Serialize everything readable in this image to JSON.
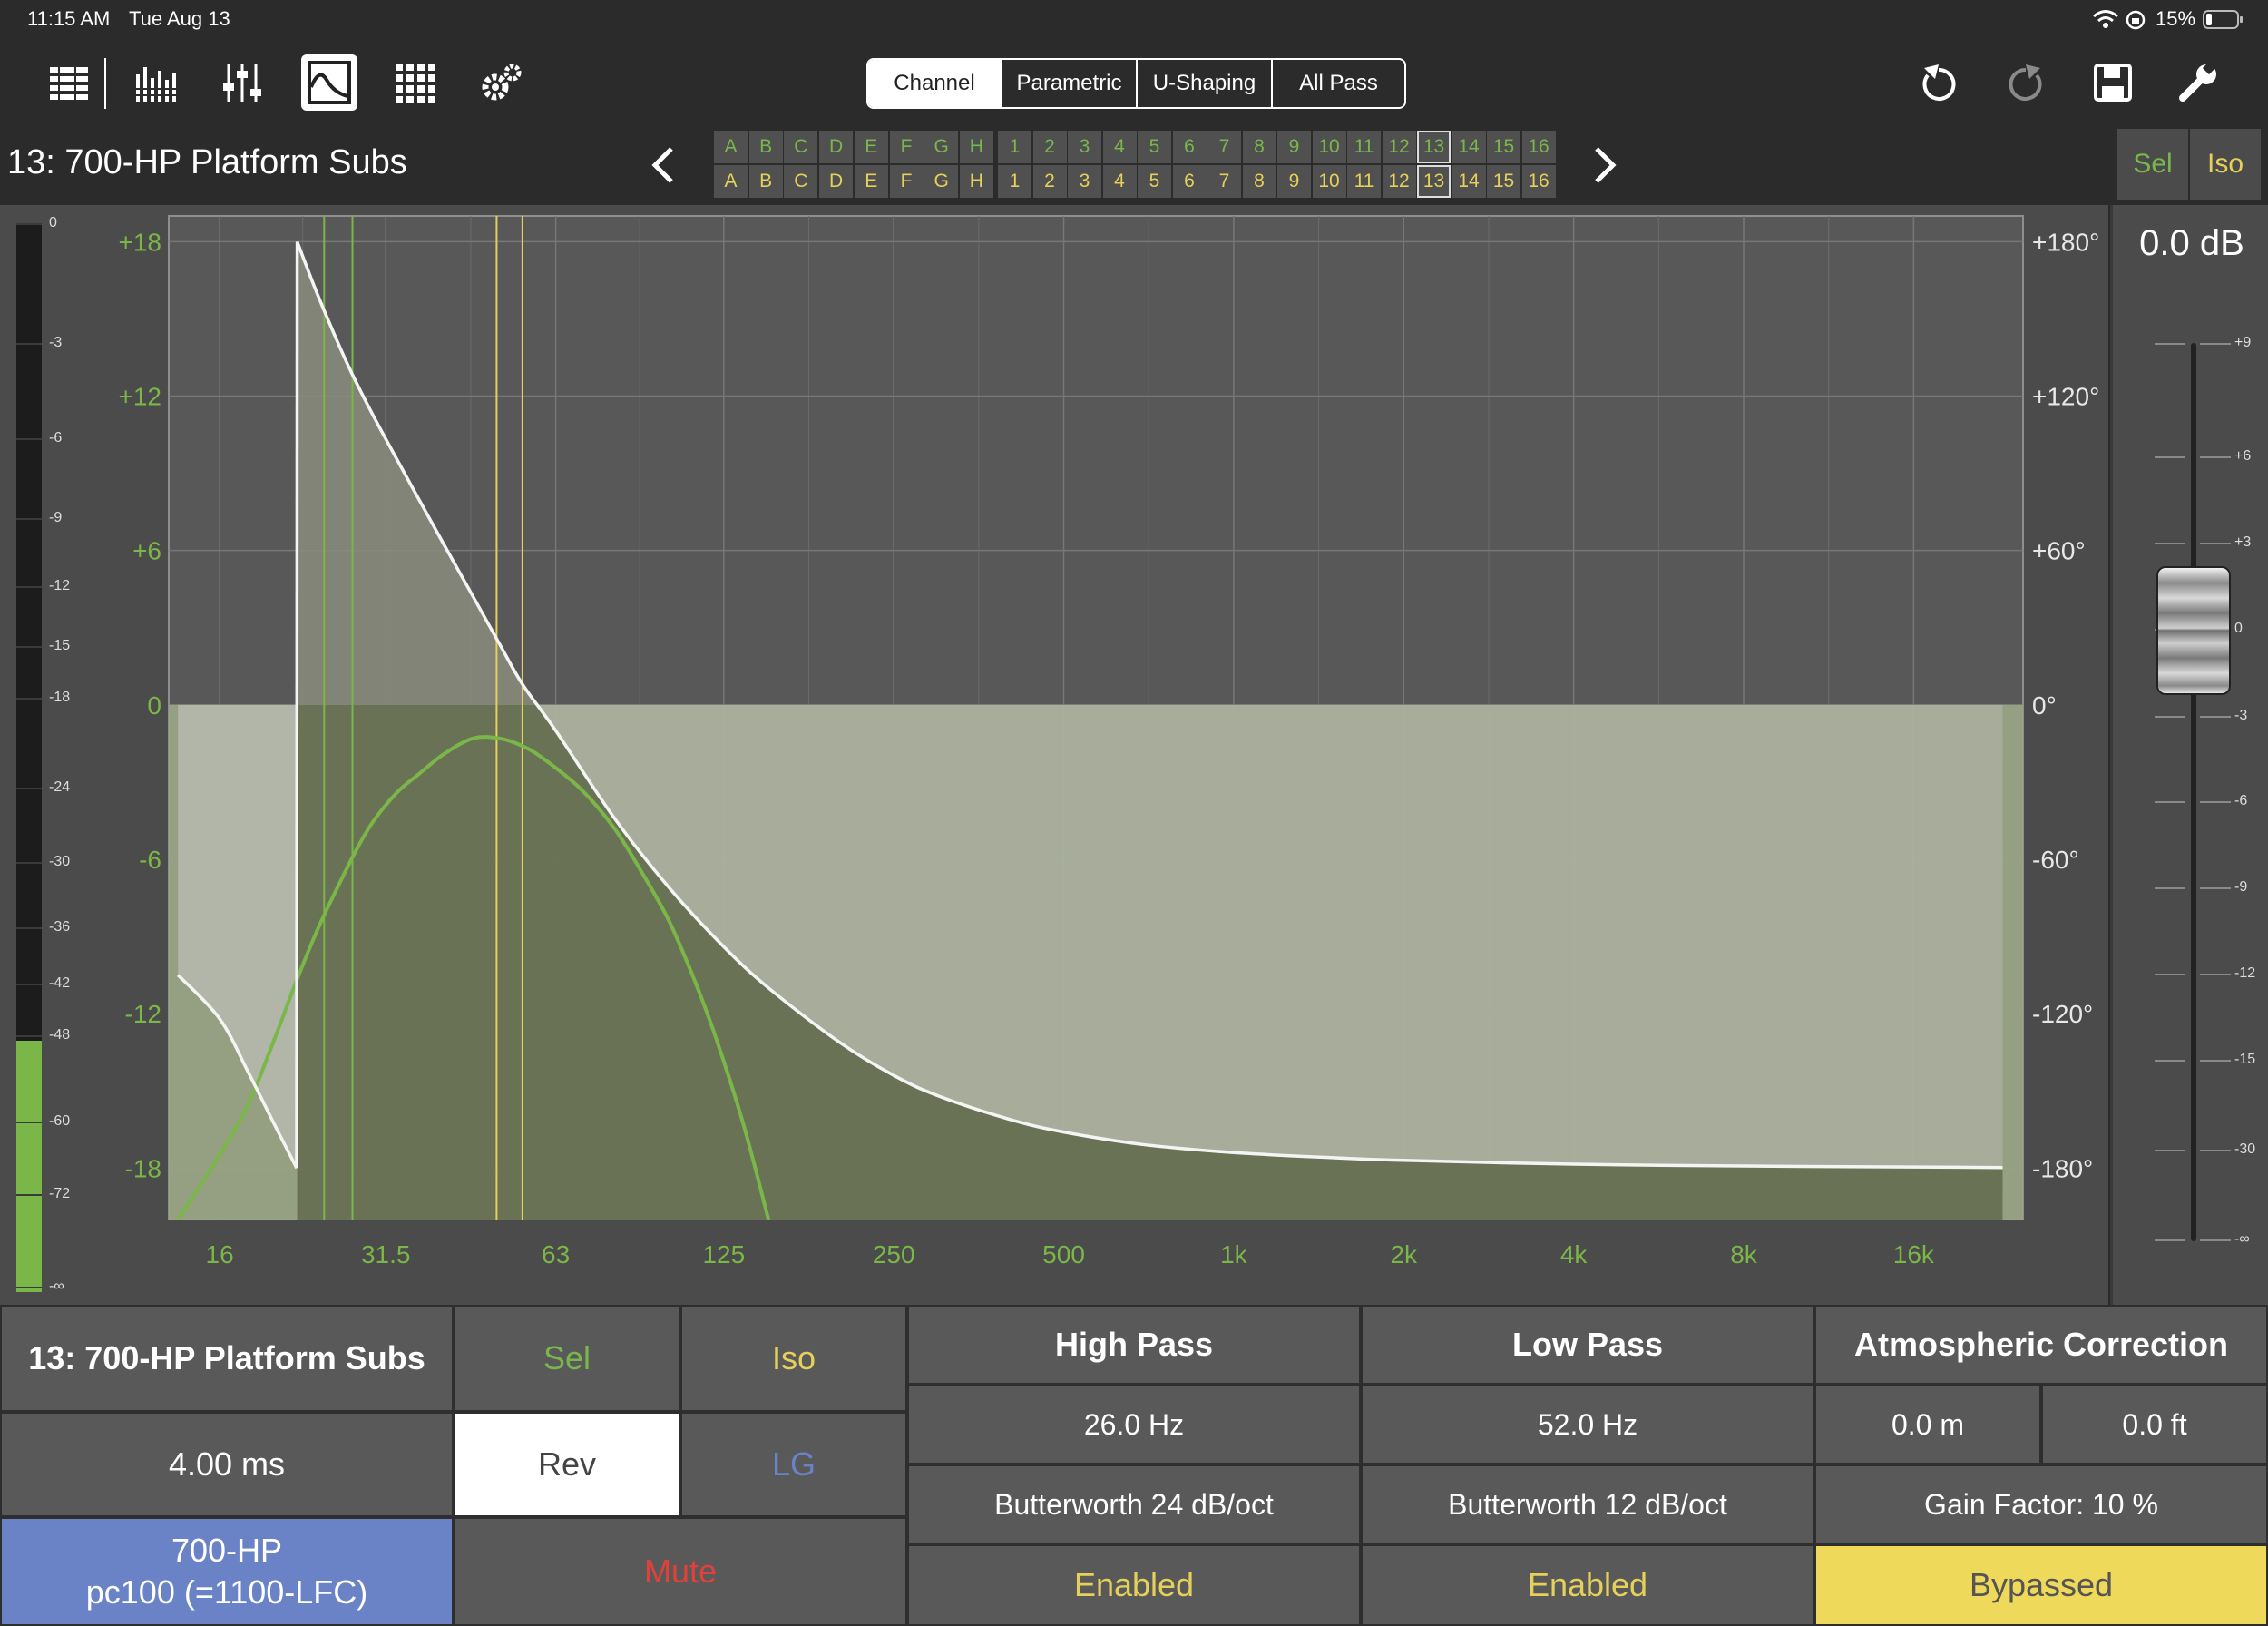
{
  "status": {
    "time": "11:15 AM",
    "date": "Tue Aug 13",
    "battery": "15%"
  },
  "toolbar": {
    "left_icons": [
      "list-view-icon",
      "meters-icon",
      "faders-icon",
      "eq-curve-icon",
      "matrix-grid-icon",
      "settings-gear-icon"
    ],
    "tabs": [
      {
        "label": "Channel",
        "active": true
      },
      {
        "label": "Parametric",
        "active": false
      },
      {
        "label": "U-Shaping",
        "active": false
      },
      {
        "label": "All Pass",
        "active": false
      }
    ],
    "right_icons": [
      "undo-icon",
      "redo-icon",
      "save-icon",
      "wrench-icon"
    ]
  },
  "header": {
    "channel_name": "13: 700-HP Platform Subs",
    "letters": [
      "A",
      "B",
      "C",
      "D",
      "E",
      "F",
      "G",
      "H"
    ],
    "numbers": [
      "1",
      "2",
      "3",
      "4",
      "5",
      "6",
      "7",
      "8",
      "9",
      "10",
      "11",
      "12",
      "13",
      "14",
      "15",
      "16"
    ],
    "selected_number": "13",
    "sel_label": "Sel",
    "iso_label": "Iso"
  },
  "meter": {
    "ticks": [
      "0",
      "-3",
      "-6",
      "-9",
      "-12",
      "-15",
      "-18",
      "-24",
      "-30",
      "-36",
      "-42",
      "-48",
      "-60",
      "-72",
      "-∞"
    ],
    "level_fraction": 0.235
  },
  "chart_data": {
    "type": "line",
    "x_scale": "log",
    "x_ticks": [
      "16",
      "31.5",
      "63",
      "125",
      "250",
      "500",
      "1k",
      "2k",
      "4k",
      "8k",
      "16k"
    ],
    "y_left_ticks": [
      "+18",
      "+12",
      "+6",
      "0",
      "-6",
      "-12",
      "-18"
    ],
    "y_right_ticks": [
      "+180°",
      "+120°",
      "+60°",
      "0°",
      "-60°",
      "-120°",
      "-180°"
    ],
    "ylim": [
      -20,
      19
    ],
    "xlim": [
      13,
      25000
    ],
    "markers": {
      "green_lines_hz": [
        24.5,
        27.5
      ],
      "yellow_lines_hz": [
        49.5,
        55
      ]
    },
    "series": [
      {
        "role": "magnitude",
        "color": "#7ab648",
        "x": [
          13.5,
          16,
          18,
          20,
          22,
          24,
          26,
          28,
          30,
          33,
          36,
          40,
          45,
          50,
          55,
          60,
          70,
          80,
          90,
          100,
          110,
          120,
          135,
          150
        ],
        "y": [
          -20,
          -17.5,
          -15.5,
          -13.0,
          -10.6,
          -8.6,
          -7.0,
          -5.6,
          -4.5,
          -3.4,
          -2.7,
          -1.9,
          -1.3,
          -1.3,
          -1.6,
          -2.1,
          -3.3,
          -4.8,
          -6.6,
          -8.4,
          -10.5,
          -12.7,
          -16.2,
          -20
        ]
      },
      {
        "role": "phase",
        "color": "#f4f4f4",
        "x": [
          13.5,
          16,
          18,
          20,
          21.9,
          21.95,
          24,
          27,
          30,
          35,
          40,
          45,
          50,
          55,
          63,
          80,
          100,
          125,
          150,
          200,
          250,
          300,
          400,
          500,
          700,
          1000,
          1500,
          2000,
          4000,
          8000,
          16000,
          23000
        ],
        "x_break": 21.9,
        "y": [
          -105,
          -122,
          -143,
          -163,
          -180,
          180,
          158,
          132,
          112,
          85,
          62,
          42,
          24,
          8,
          -10,
          -44,
          -71,
          -94,
          -110,
          -131,
          -144,
          -152,
          -161,
          -166,
          -171,
          -174,
          -176,
          -177,
          -178.5,
          -179.2,
          -179.6,
          -179.8
        ]
      }
    ]
  },
  "fader": {
    "value_label": "0.0 dB",
    "ticks": [
      "+9",
      "+6",
      "+3",
      "0",
      "-3",
      "-6",
      "-9",
      "-12",
      "-15",
      "-30",
      "-∞"
    ]
  },
  "bottom": {
    "channel_name": "13: 700-HP Platform Subs",
    "sel": "Sel",
    "iso": "Iso",
    "delay": "4.00 ms",
    "rev": "Rev",
    "lg": "LG",
    "speaker_line1": "700-HP",
    "speaker_line2": "pc100 (=1100-LFC)",
    "mute": "Mute",
    "high_pass": {
      "title": "High Pass",
      "freq": "26.0 Hz",
      "type": "Butterworth 24 dB/oct",
      "state": "Enabled"
    },
    "low_pass": {
      "title": "Low Pass",
      "freq": "52.0 Hz",
      "type": "Butterworth 12 dB/oct",
      "state": "Enabled"
    },
    "atmo": {
      "title": "Atmospheric Correction",
      "dist_m": "0.0 m",
      "dist_ft": "0.0 ft",
      "gain": "Gain Factor: 10 %",
      "state": "Bypassed"
    }
  },
  "colors": {
    "green": "#79b74c",
    "yellow": "#e4d05a",
    "blue": "#6a83c6",
    "red": "#e0413a",
    "bypass_yellow": "#efd95a"
  }
}
